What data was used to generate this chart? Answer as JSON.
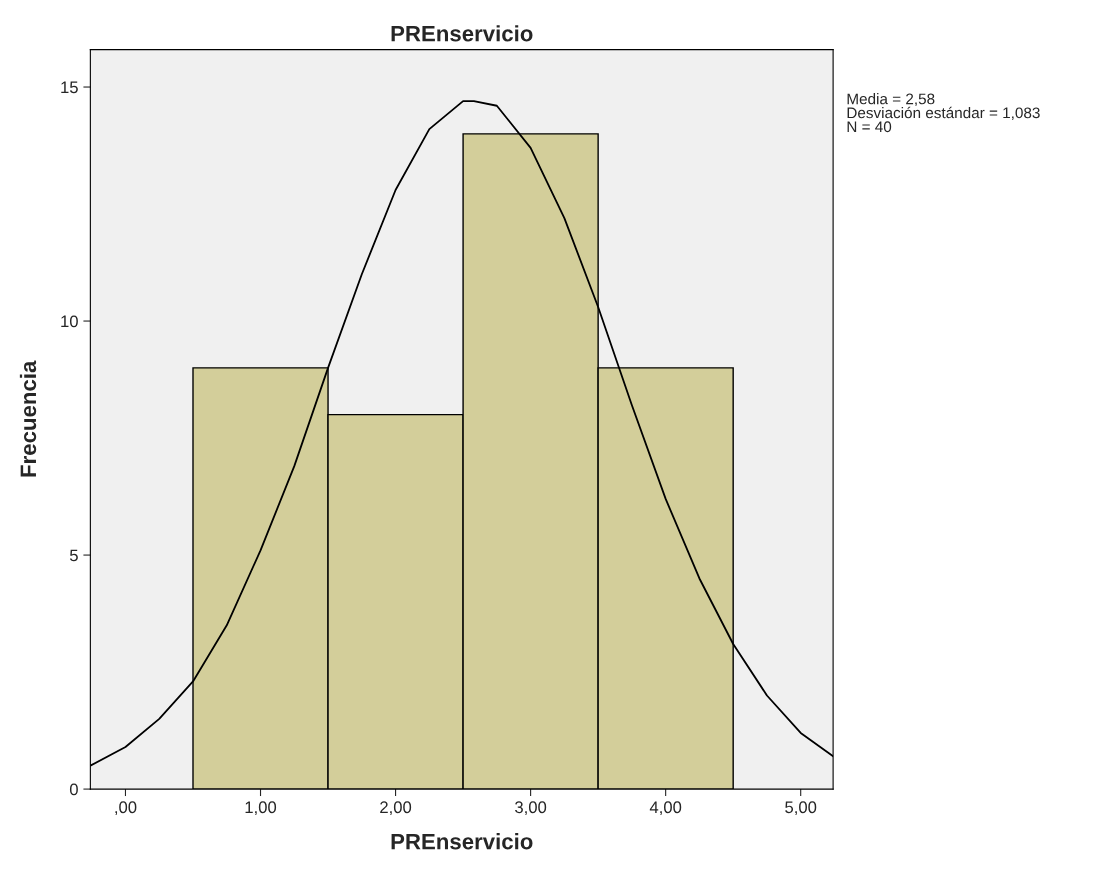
{
  "chart_data": {
    "type": "histogram",
    "title": "PREnservicio",
    "xlabel": "PREnservicio",
    "ylabel": "Frecuencia",
    "bins": [
      0.5,
      1.5,
      2.5,
      3.5,
      4.5
    ],
    "series": [
      {
        "color": "#d3ce9a",
        "values": [
          9,
          8,
          14,
          9
        ]
      },
      {
        "type": "line",
        "color": "#000000",
        "x": [
          -0.26,
          0,
          0.25,
          0.5,
          0.75,
          1.0,
          1.25,
          1.5,
          1.75,
          2.0,
          2.25,
          2.5,
          2.58,
          2.75,
          3.0,
          3.25,
          3.5,
          3.75,
          4.0,
          4.25,
          4.5,
          4.75,
          5.0,
          5.24
        ],
        "values": [
          0.5,
          0.9,
          1.5,
          2.3,
          3.5,
          5.1,
          6.9,
          9.0,
          11.0,
          12.8,
          14.1,
          14.7,
          14.7,
          14.6,
          13.7,
          12.2,
          10.3,
          8.2,
          6.2,
          4.5,
          3.1,
          2.0,
          1.2,
          0.7
        ]
      }
    ],
    "xlim": [
      -0.26,
      5.24
    ],
    "ylim": [
      0,
      15.8
    ],
    "xticks": [
      {
        "value": 0,
        "label": ",00"
      },
      {
        "value": 1,
        "label": "1,00"
      },
      {
        "value": 2,
        "label": "2,00"
      },
      {
        "value": 3,
        "label": "3,00"
      },
      {
        "value": 4,
        "label": "4,00"
      },
      {
        "value": 5,
        "label": "5,00"
      }
    ],
    "yticks": [
      0,
      5,
      10,
      15
    ],
    "annotations": [
      "Media = 2,58",
      "Desviación estándar = 1,083",
      "N = 40"
    ]
  }
}
